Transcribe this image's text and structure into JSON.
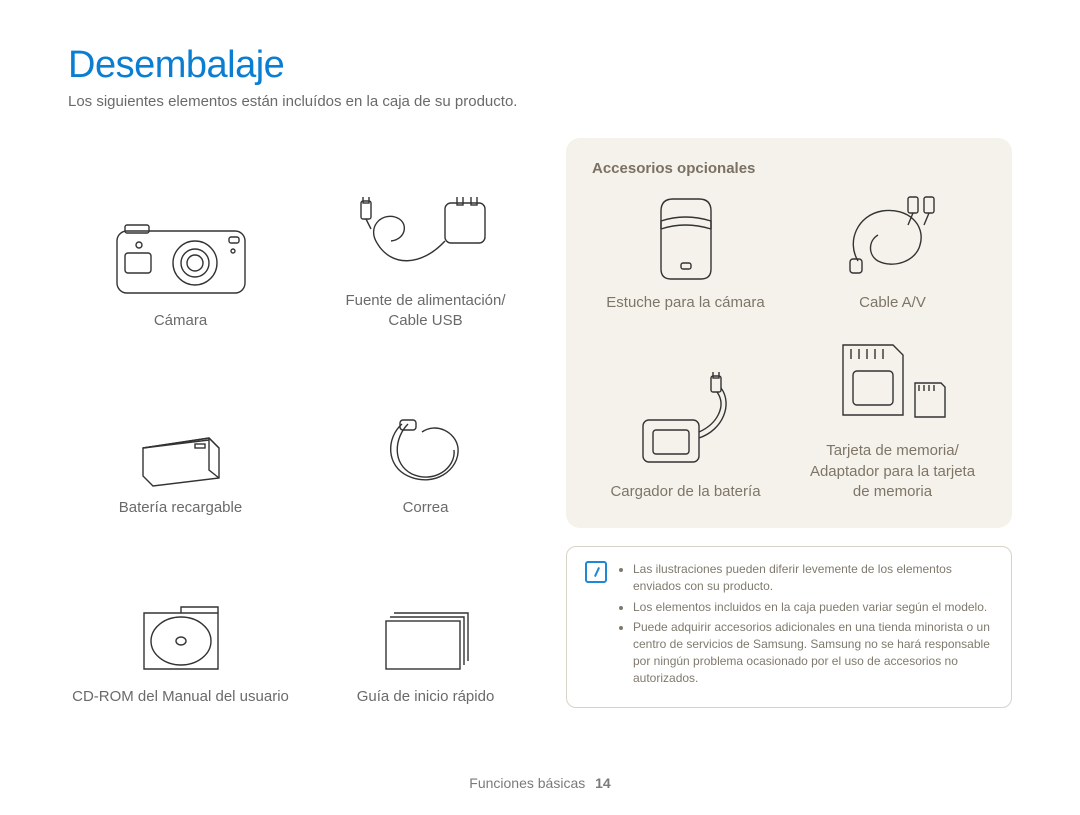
{
  "title": "Desembalaje",
  "title_color": "#0a7ed2",
  "subtitle": "Los siguientes elementos están incluídos en la caja de su producto.",
  "included": [
    {
      "name": "camera",
      "label": "Cámara"
    },
    {
      "name": "psu-usb",
      "label": "Fuente de alimentación/\nCable USB"
    },
    {
      "name": "battery",
      "label": "Batería recargable"
    },
    {
      "name": "strap",
      "label": "Correa"
    },
    {
      "name": "cdrom",
      "label": "CD-ROM del Manual del usuario"
    },
    {
      "name": "qsg",
      "label": "Guía de inicio rápido"
    }
  ],
  "optional_panel": {
    "title": "Accesorios opcionales",
    "bg": "#f5f2ec",
    "title_color": "#7a7164",
    "items": [
      {
        "name": "case",
        "label": "Estuche para la cámara"
      },
      {
        "name": "avcable",
        "label": "Cable A/V"
      },
      {
        "name": "charger",
        "label": "Cargador de la batería"
      },
      {
        "name": "memcard",
        "label": "Tarjeta de memoria/\nAdaptador para la tarjeta\nde memoria"
      }
    ]
  },
  "note_box": {
    "border_color": "#d9d3c6",
    "icon_color": "#1e88d6",
    "bullets": [
      "Las ilustraciones pueden diferir levemente de los elementos enviados con su producto.",
      "Los elementos incluidos en la caja pueden variar según el modelo.",
      "Puede adquirir accesorios adicionales en una tienda minorista o un centro de servicios de Samsung. Samsung no se hará responsable por ningún problema ocasionado por el uso de accesorios no autorizados."
    ]
  },
  "footer": {
    "section": "Funciones básicas",
    "page": "14"
  },
  "style": {
    "body_text_color": "#6a6a6a",
    "panel_label_color": "#7e7567",
    "note_text_color": "#807a6e",
    "background": "#ffffff",
    "font_family": "Arial, Helvetica, sans-serif"
  }
}
